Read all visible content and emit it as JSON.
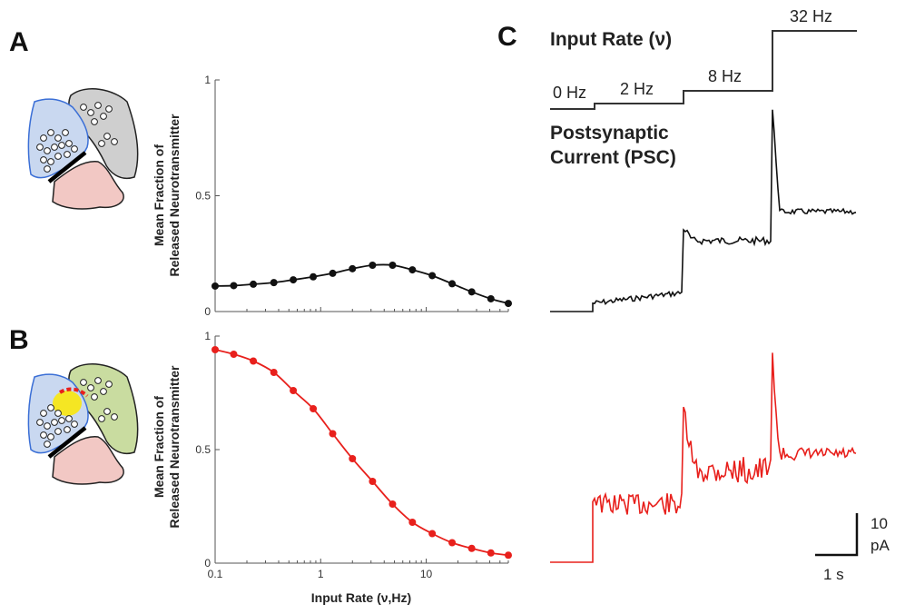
{
  "panels": {
    "a": "A",
    "b": "B",
    "c": "C"
  },
  "colors": {
    "black_series": "#111111",
    "red_series": "#e8201c",
    "synapse_grey": "#cfcfcf",
    "synapse_green": "#c9dca0",
    "synapse_blue": "#c9d8f0",
    "synapse_pink": "#f2c8c4",
    "yellow": "#f5e623"
  },
  "icons": [
    "synapse-schematic-icon",
    "synapse-schematic-glial-icon"
  ],
  "chart_data": [
    {
      "type": "line",
      "panel": "A",
      "ylabel_line1": "Mean Fraction of",
      "ylabel_line2": "Released Neurotransmitter",
      "xlabel": "",
      "xscale": "log",
      "xlim": [
        0.1,
        60
      ],
      "ylim": [
        0,
        1
      ],
      "yticks": [
        "0",
        "0.5",
        "1"
      ],
      "series": [
        {
          "color": "#111111",
          "x": [
            0.1,
            0.15,
            0.23,
            0.36,
            0.55,
            0.85,
            1.3,
            2.0,
            3.1,
            4.8,
            7.4,
            11.4,
            17.6,
            27,
            41,
            60
          ],
          "y": [
            0.11,
            0.112,
            0.118,
            0.125,
            0.137,
            0.15,
            0.165,
            0.185,
            0.2,
            0.2,
            0.18,
            0.155,
            0.12,
            0.085,
            0.055,
            0.035
          ]
        }
      ]
    },
    {
      "type": "line",
      "panel": "B",
      "ylabel_line1": "Mean Fraction of",
      "ylabel_line2": "Released Neurotransmitter",
      "xlabel": "Input Rate (ν,Hz)",
      "xscale": "log",
      "xlim": [
        0.1,
        60
      ],
      "ylim": [
        0,
        1
      ],
      "yticks": [
        "0",
        "0.5",
        "1"
      ],
      "xticks": [
        "0.1",
        "1",
        "10"
      ],
      "series": [
        {
          "color": "#e8201c",
          "x": [
            0.1,
            0.15,
            0.23,
            0.36,
            0.55,
            0.85,
            1.3,
            2.0,
            3.1,
            4.8,
            7.4,
            11.4,
            17.6,
            27,
            41,
            60
          ],
          "y": [
            0.94,
            0.92,
            0.89,
            0.84,
            0.76,
            0.68,
            0.57,
            0.46,
            0.36,
            0.26,
            0.18,
            0.13,
            0.09,
            0.065,
            0.045,
            0.035
          ]
        }
      ]
    },
    {
      "type": "line",
      "panel": "C",
      "title": "Input Rate (ν)",
      "subtitle_line1": "Postsynaptic",
      "subtitle_line2": "Current (PSC)",
      "rate_labels": [
        "0 Hz",
        "2 Hz",
        "8 Hz",
        "32 Hz"
      ],
      "rate_steps": [
        0,
        2,
        8,
        32
      ],
      "scale_bar": {
        "y_label_1": "10",
        "y_label_2": "pA",
        "x_label": "1 s"
      }
    }
  ]
}
